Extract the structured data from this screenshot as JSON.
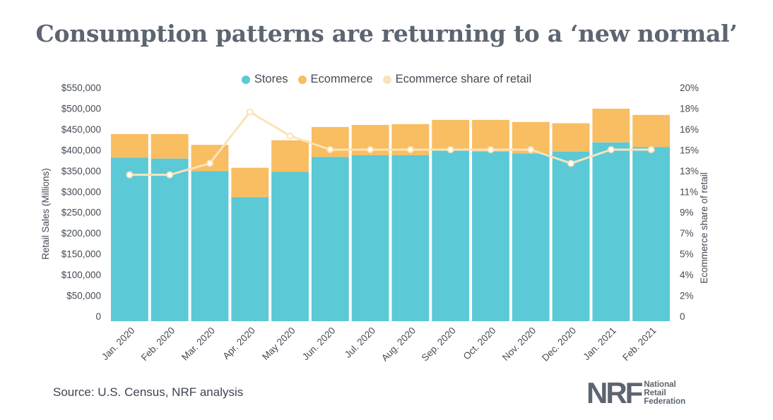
{
  "title": "Consumption patterns are returning to a ‘new normal’",
  "source": "Source: U.S. Census, NRF analysis",
  "logo": {
    "mark": "NRF",
    "line1": "National",
    "line2": "Retail",
    "line3": "Federation"
  },
  "colors": {
    "stores": "#5bc9d6",
    "ecommerce": "#f9bd62",
    "share": "#fce3b9",
    "title": "#5c6570"
  },
  "chart_data": {
    "type": "bar",
    "stacked": true,
    "categories": [
      "Jan. 2020",
      "Feb. 2020",
      "Mar. 2020",
      "Apr. 2020",
      "May 2020",
      "Jun. 2020",
      "Jul. 2020",
      "Aug. 2020",
      "Sep. 2020",
      "Oct. 2020",
      "Nov. 2020",
      "Dec. 2020",
      "Jan. 2021",
      "Feb. 2021"
    ],
    "series": [
      {
        "name": "Stores",
        "values": [
          393000,
          391000,
          361000,
          298000,
          359000,
          395000,
          399000,
          399000,
          410000,
          408000,
          403000,
          408000,
          430000,
          419000
        ]
      },
      {
        "name": "Ecommerce",
        "values": [
          57000,
          59000,
          63000,
          71000,
          76000,
          72000,
          73000,
          75000,
          74000,
          76000,
          76000,
          68000,
          81000,
          77000
        ]
      }
    ],
    "line_series": {
      "name": "Ecommerce share of retail",
      "values": [
        12.8,
        12.8,
        13.8,
        18.3,
        16.2,
        15.0,
        15.0,
        15.0,
        15.0,
        15.0,
        15.0,
        13.8,
        15.0,
        15.0
      ]
    },
    "ylabel": "Retail Sales (Millions)",
    "y2label": "Ecommerce share of retail",
    "ylim": [
      0,
      550000
    ],
    "y2lim": [
      0,
      20
    ],
    "yticks": [
      "0",
      "$50,000",
      "$100,000",
      "$150,000",
      "$200,000",
      "$250,000",
      "$300,000",
      "$350,000",
      "$400,000",
      "$450,000",
      "$500,000",
      "$550,000"
    ],
    "y2ticks": [
      "0",
      "2%",
      "4%",
      "5%",
      "7%",
      "9%",
      "11%",
      "13%",
      "15%",
      "16%",
      "18%",
      "20%"
    ],
    "grid": false,
    "legend": "top-center"
  }
}
